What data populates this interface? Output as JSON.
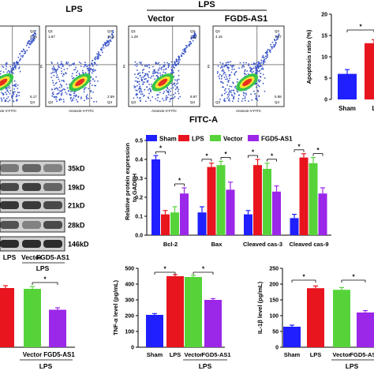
{
  "flow": {
    "lps_top": "LPS",
    "lps_group": "LPS",
    "col_lps": "LPS",
    "col_vector": "Vector",
    "col_fgd5": "FGD5-AS1",
    "axis_x_small": "Annexin-V-FITC",
    "axis_y_small": "PI",
    "fitc_label": "FITC-A",
    "quadrant_tags": [
      "Q1",
      "Q2",
      "Q3",
      "Q4"
    ],
    "panels": [
      {
        "q1": "",
        "q2": "2.15",
        "q3": "",
        "q4": "5.17"
      },
      {
        "q1": "1.67",
        "q2": "14.8",
        "q3": "",
        "q4": "2.59"
      },
      {
        "q1": "1.29",
        "q2": "7.11",
        "q3": "",
        "q4": "8.97"
      },
      {
        "q1": "4.15",
        "q2": "7.07",
        "q3": "",
        "q4": "5.88"
      }
    ]
  },
  "colors": {
    "sham": "#1f1fff",
    "lps": "#e8141e",
    "vector": "#57d33a",
    "fgd5": "#9b27e8"
  },
  "western": {
    "markers": [
      "35kD",
      "19kD",
      "21kD",
      "28kD",
      "146kD"
    ],
    "lane_labels": [
      "LPS",
      "Vector",
      "FGD5-AS1"
    ],
    "group_label": "LPS"
  },
  "chart_data": [
    {
      "type": "bar",
      "name": "apoptosis",
      "ylabel": "Apoptosis ratio (%)",
      "categories": [
        "Sham",
        "L"
      ],
      "values": [
        6,
        13.2
      ],
      "errors": [
        1,
        0.8
      ],
      "ylim": [
        0,
        20
      ],
      "yticks": [
        "0",
        "5",
        "10",
        "15",
        "20"
      ],
      "sig": [
        "*"
      ]
    },
    {
      "type": "bar",
      "name": "protein",
      "ylabel": "Relative protein expression to GADPH",
      "categories": [
        "Bcl-2",
        "Bax",
        "Cleaved cas-3",
        "Cleaved cas-9"
      ],
      "legend": [
        "Sham",
        "LPS",
        "Vector",
        "FGD5-AS1"
      ],
      "series": [
        {
          "name": "Sham",
          "values": [
            0.4,
            0.12,
            0.11,
            0.09
          ],
          "errors": [
            0.02,
            0.03,
            0.02,
            0.02
          ]
        },
        {
          "name": "LPS",
          "values": [
            0.11,
            0.36,
            0.37,
            0.41
          ],
          "errors": [
            0.02,
            0.02,
            0.03,
            0.02
          ]
        },
        {
          "name": "Vector",
          "values": [
            0.12,
            0.37,
            0.35,
            0.38
          ],
          "errors": [
            0.03,
            0.02,
            0.03,
            0.03
          ]
        },
        {
          "name": "FGD5-AS1",
          "values": [
            0.22,
            0.24,
            0.23,
            0.22
          ],
          "errors": [
            0.03,
            0.04,
            0.03,
            0.03
          ]
        }
      ],
      "ylim": [
        0,
        0.5
      ],
      "yticks": [
        "0.0",
        "0.1",
        "0.2",
        "0.3",
        "0.4",
        "0.5"
      ],
      "sig": [
        "*",
        "*",
        "*",
        "*",
        "*",
        "*",
        "*",
        "*"
      ]
    },
    {
      "type": "bar",
      "name": "cytokine-left",
      "categories": [
        "",
        "Vector",
        "FGD5-AS1"
      ],
      "values": [
        150,
        148,
        95
      ],
      "errors": [
        6,
        6,
        5
      ],
      "ylim": [
        0,
        200
      ],
      "group_label": "LPS",
      "sig": [
        "*"
      ]
    },
    {
      "type": "bar",
      "name": "tnf",
      "ylabel": "TNF-α level (pg/mL)",
      "categories": [
        "Sham",
        "LPS",
        "Vector",
        "FGD5-AS1"
      ],
      "values": [
        205,
        450,
        445,
        300
      ],
      "errors": [
        8,
        10,
        10,
        8
      ],
      "ylim": [
        0,
        500
      ],
      "yticks": [
        "0",
        "100",
        "200",
        "300",
        "400",
        "500"
      ],
      "group_label": "LPS",
      "sig": [
        "*",
        "*"
      ]
    },
    {
      "type": "bar",
      "name": "il1b",
      "ylabel": "IL-1β level (pg/mL)",
      "categories": [
        "Sham",
        "LPS",
        "Vector",
        "FGD5-AS1"
      ],
      "values": [
        65,
        187,
        182,
        110
      ],
      "errors": [
        5,
        7,
        7,
        6
      ],
      "ylim": [
        0,
        250
      ],
      "yticks": [
        "0",
        "50",
        "100",
        "150",
        "200",
        "250"
      ],
      "group_label": "LPS",
      "sig": [
        "*",
        "*"
      ]
    }
  ]
}
